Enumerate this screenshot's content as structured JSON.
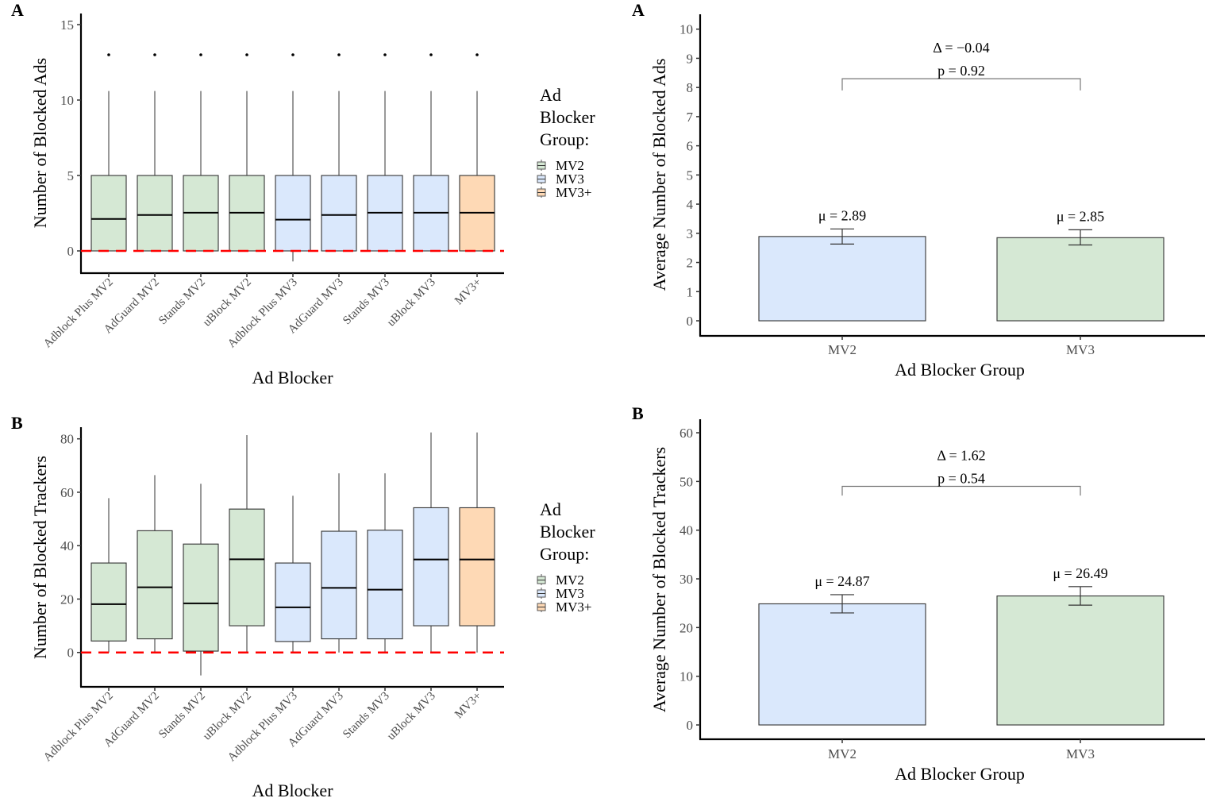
{
  "colors": {
    "MV2": "#d5e8d4",
    "MV3": "#dae8fc",
    "MV3+": "#fed9b5",
    "reference_line": "#ff0000",
    "axis": "#000000",
    "tick_text": "#4d4d4d"
  },
  "chart_data": [
    {
      "id": "boxplot-ads",
      "panel": "A",
      "type": "box",
      "title": "",
      "xlabel": "Ad Blocker",
      "ylabel": "Number of Blocked Ads",
      "ylim": [
        -1.5,
        16
      ],
      "yticks": [
        0,
        5,
        10,
        15
      ],
      "reference_line": 0,
      "grid": false,
      "legend": {
        "title": [
          "Ad",
          "Blocker",
          "Group:"
        ],
        "position": "right",
        "entries": [
          "MV2",
          "MV3",
          "MV3+"
        ]
      },
      "categories": [
        "Adblock Plus MV2",
        "AdGuard MV2",
        "Stands MV2",
        "uBlock MV2",
        "Adblock Plus MV3",
        "AdGuard MV3",
        "Stands MV3",
        "uBlock MV3",
        "MV3+"
      ],
      "groups": [
        "MV2",
        "MV2",
        "MV2",
        "MV2",
        "MV3",
        "MV3",
        "MV3",
        "MV3",
        "MV3+"
      ],
      "boxes": [
        {
          "lower": 0,
          "q1": 0,
          "median": 2.12,
          "q3": 5,
          "upper": 10.6,
          "outliers": [
            13
          ]
        },
        {
          "lower": 0,
          "q1": 0,
          "median": 2.38,
          "q3": 5,
          "upper": 10.6,
          "outliers": [
            13
          ]
        },
        {
          "lower": 0,
          "q1": 0,
          "median": 2.53,
          "q3": 5,
          "upper": 10.6,
          "outliers": [
            13
          ]
        },
        {
          "lower": 0,
          "q1": 0,
          "median": 2.53,
          "q3": 5,
          "upper": 10.6,
          "outliers": [
            13
          ]
        },
        {
          "lower": -0.7,
          "q1": 0,
          "median": 2.07,
          "q3": 5,
          "upper": 10.6,
          "outliers": [
            13
          ]
        },
        {
          "lower": 0,
          "q1": 0,
          "median": 2.38,
          "q3": 5,
          "upper": 10.6,
          "outliers": [
            13
          ]
        },
        {
          "lower": 0,
          "q1": 0,
          "median": 2.53,
          "q3": 5,
          "upper": 10.6,
          "outliers": [
            13
          ]
        },
        {
          "lower": 0,
          "q1": 0,
          "median": 2.53,
          "q3": 5,
          "upper": 10.6,
          "outliers": [
            13
          ]
        },
        {
          "lower": 0,
          "q1": 0,
          "median": 2.53,
          "q3": 5,
          "upper": 10.6,
          "outliers": [
            13
          ]
        }
      ]
    },
    {
      "id": "boxplot-trackers",
      "panel": "B",
      "type": "box",
      "title": "",
      "xlabel": "Ad Blocker",
      "ylabel": "Number of Blocked Trackers",
      "ylim": [
        -13,
        84
      ],
      "yticks": [
        0,
        20,
        40,
        60,
        80
      ],
      "reference_line": 0,
      "grid": false,
      "legend": {
        "title": [
          "Ad",
          "Blocker",
          "Group:"
        ],
        "position": "right",
        "entries": [
          "MV2",
          "MV3",
          "MV3+"
        ]
      },
      "categories": [
        "Adblock Plus MV2",
        "AdGuard MV2",
        "Stands MV2",
        "uBlock MV2",
        "Adblock Plus MV3",
        "AdGuard MV3",
        "Stands MV3",
        "uBlock MV3",
        "MV3+"
      ],
      "groups": [
        "MV2",
        "MV2",
        "MV2",
        "MV2",
        "MV3",
        "MV3",
        "MV3",
        "MV3",
        "MV3+"
      ],
      "boxes": [
        {
          "lower": 0,
          "q1": 4.3,
          "median": 18.1,
          "q3": 33.5,
          "upper": 57.8,
          "outliers": []
        },
        {
          "lower": 0,
          "q1": 5.1,
          "median": 24.4,
          "q3": 45.6,
          "upper": 66.4,
          "outliers": []
        },
        {
          "lower": -8.6,
          "q1": 0.5,
          "median": 18.4,
          "q3": 40.6,
          "upper": 63.2,
          "outliers": []
        },
        {
          "lower": 0,
          "q1": 10.0,
          "median": 34.9,
          "q3": 53.7,
          "upper": 81.4,
          "outliers": []
        },
        {
          "lower": 0,
          "q1": 4.1,
          "median": 16.9,
          "q3": 33.5,
          "upper": 58.7,
          "outliers": []
        },
        {
          "lower": 0,
          "q1": 5.1,
          "median": 24.2,
          "q3": 45.4,
          "upper": 67.1,
          "outliers": []
        },
        {
          "lower": 0,
          "q1": 5.1,
          "median": 23.5,
          "q3": 45.8,
          "upper": 67.1,
          "outliers": []
        },
        {
          "lower": 0,
          "q1": 10.0,
          "median": 34.8,
          "q3": 54.2,
          "upper": 82.4,
          "outliers": []
        },
        {
          "lower": 0,
          "q1": 10.0,
          "median": 34.8,
          "q3": 54.2,
          "upper": 82.4,
          "outliers": []
        }
      ]
    },
    {
      "id": "bar-ads",
      "panel": "A",
      "type": "bar",
      "title": "",
      "xlabel": "Ad Blocker Group",
      "ylabel": "Average Number of Blocked Ads",
      "ylim": [
        -0.5,
        10.4
      ],
      "yticks": [
        0,
        1,
        2,
        3,
        4,
        5,
        6,
        7,
        8,
        9,
        10
      ],
      "grid": false,
      "categories": [
        "MV2",
        "MV3"
      ],
      "values": [
        2.89,
        2.85
      ],
      "error_low": [
        2.63,
        2.6
      ],
      "error_high": [
        3.15,
        3.12
      ],
      "bar_colors": [
        "MV3",
        "MV2"
      ],
      "value_labels": [
        "μ = 2.89",
        "μ = 2.85"
      ],
      "comparison": {
        "delta_label": "Δ = −0.04",
        "p_label": "p = 0.92",
        "bracket_y": 8.3,
        "bracket_tip": 7.9
      }
    },
    {
      "id": "bar-trackers",
      "panel": "B",
      "type": "bar",
      "title": "",
      "xlabel": "Ad Blocker Group",
      "ylabel": "Average Number of Blocked Trackers",
      "ylim": [
        -3,
        63
      ],
      "yticks": [
        0,
        10,
        20,
        30,
        40,
        50,
        60
      ],
      "grid": false,
      "categories": [
        "MV2",
        "MV3"
      ],
      "values": [
        24.87,
        26.49
      ],
      "error_low": [
        23.0,
        24.6
      ],
      "error_high": [
        26.75,
        28.4
      ],
      "bar_colors": [
        "MV3",
        "MV2"
      ],
      "value_labels": [
        "μ = 24.87",
        "μ = 26.49"
      ],
      "comparison": {
        "delta_label": "Δ = 1.62",
        "p_label": "p = 0.54",
        "bracket_y": 49.0,
        "bracket_tip": 47.1
      }
    }
  ]
}
